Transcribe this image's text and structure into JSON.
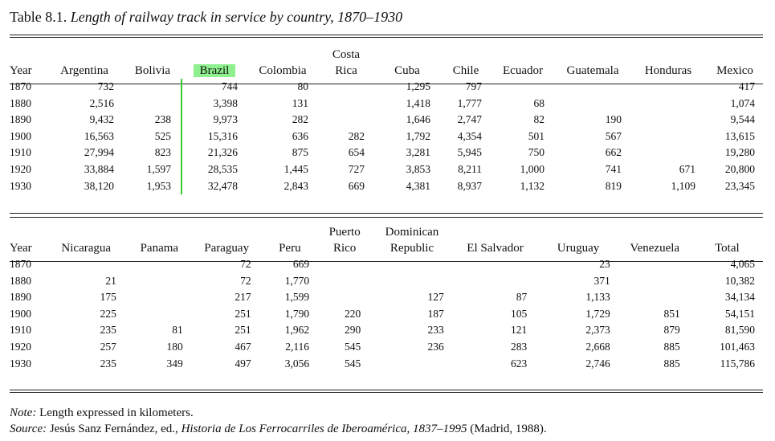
{
  "caption": {
    "label": "Table 8.1.",
    "title": "Length of railway track in service by country, 1870–1930"
  },
  "table1": {
    "headers": [
      {
        "top": "",
        "bottom": "Year"
      },
      {
        "top": "",
        "bottom": "Argentina"
      },
      {
        "top": "",
        "bottom": "Bolivia"
      },
      {
        "top": "",
        "bottom": "Brazil"
      },
      {
        "top": "",
        "bottom": "Colombia"
      },
      {
        "top": "Costa",
        "bottom": "Rica"
      },
      {
        "top": "",
        "bottom": "Cuba"
      },
      {
        "top": "",
        "bottom": "Chile"
      },
      {
        "top": "",
        "bottom": "Ecuador"
      },
      {
        "top": "",
        "bottom": "Guatemala"
      },
      {
        "top": "",
        "bottom": "Honduras"
      },
      {
        "top": "",
        "bottom": "Mexico"
      }
    ],
    "rows": [
      [
        "1870",
        "732",
        "",
        "744",
        "80",
        "",
        "1,295",
        "797",
        "",
        "",
        "",
        "417"
      ],
      [
        "1880",
        "2,516",
        "",
        "3,398",
        "131",
        "",
        "1,418",
        "1,777",
        "68",
        "",
        "",
        "1,074"
      ],
      [
        "1890",
        "9,432",
        "238",
        "9,973",
        "282",
        "",
        "1,646",
        "2,747",
        "82",
        "190",
        "",
        "9,544"
      ],
      [
        "1900",
        "16,563",
        "525",
        "15,316",
        "636",
        "282",
        "1,792",
        "4,354",
        "501",
        "567",
        "",
        "13,615"
      ],
      [
        "1910",
        "27,994",
        "823",
        "21,326",
        "875",
        "654",
        "3,281",
        "5,945",
        "750",
        "662",
        "",
        "19,280"
      ],
      [
        "1920",
        "33,884",
        "1,597",
        "28,535",
        "1,445",
        "727",
        "3,853",
        "8,211",
        "1,000",
        "741",
        "671",
        "20,800"
      ],
      [
        "1930",
        "38,120",
        "1,953",
        "32,478",
        "2,843",
        "669",
        "4,381",
        "8,937",
        "1,132",
        "819",
        "1,109",
        "23,345"
      ]
    ]
  },
  "table2": {
    "headers": [
      {
        "top": "",
        "bottom": "Year"
      },
      {
        "top": "",
        "bottom": "Nicaragua"
      },
      {
        "top": "",
        "bottom": "Panama"
      },
      {
        "top": "",
        "bottom": "Paraguay"
      },
      {
        "top": "",
        "bottom": "Peru"
      },
      {
        "top": "Puerto",
        "bottom": "Rico"
      },
      {
        "top": "Dominican",
        "bottom": "Republic"
      },
      {
        "top": "",
        "bottom": "El Salvador"
      },
      {
        "top": "",
        "bottom": "Uruguay"
      },
      {
        "top": "",
        "bottom": "Venezuela"
      },
      {
        "top": "",
        "bottom": "Total"
      }
    ],
    "rows": [
      [
        "1870",
        "",
        "",
        "72",
        "669",
        "",
        "",
        "",
        "23",
        "",
        "4,065"
      ],
      [
        "1880",
        "21",
        "",
        "72",
        "1,770",
        "",
        "",
        "",
        "371",
        "",
        "10,382"
      ],
      [
        "1890",
        "175",
        "",
        "217",
        "1,599",
        "",
        "127",
        "87",
        "1,133",
        "",
        "34,134"
      ],
      [
        "1900",
        "225",
        "",
        "251",
        "1,790",
        "220",
        "187",
        "105",
        "1,729",
        "851",
        "54,151"
      ],
      [
        "1910",
        "235",
        "81",
        "251",
        "1,962",
        "290",
        "233",
        "121",
        "2,373",
        "879",
        "81,590"
      ],
      [
        "1920",
        "257",
        "180",
        "467",
        "2,116",
        "545",
        "236",
        "283",
        "2,668",
        "885",
        "101,463"
      ],
      [
        "1930",
        "235",
        "349",
        "497",
        "3,056",
        "545",
        "",
        "623",
        "2,746",
        "885",
        "115,786"
      ]
    ]
  },
  "notes": {
    "note_label": "Note:",
    "note_text": " Length expressed in kilometers.",
    "source_label": "Source:",
    "source_prefix": " Jesús Sanz Fernández, ed., ",
    "source_title": "Historia de Los Ferrocarriles de Iberoamérica, 1837–1995",
    "source_suffix": " (Madrid, 1988)."
  },
  "highlight": {
    "column": "Brazil",
    "color": "#8ef08e",
    "marker_color": "#33cc33"
  }
}
